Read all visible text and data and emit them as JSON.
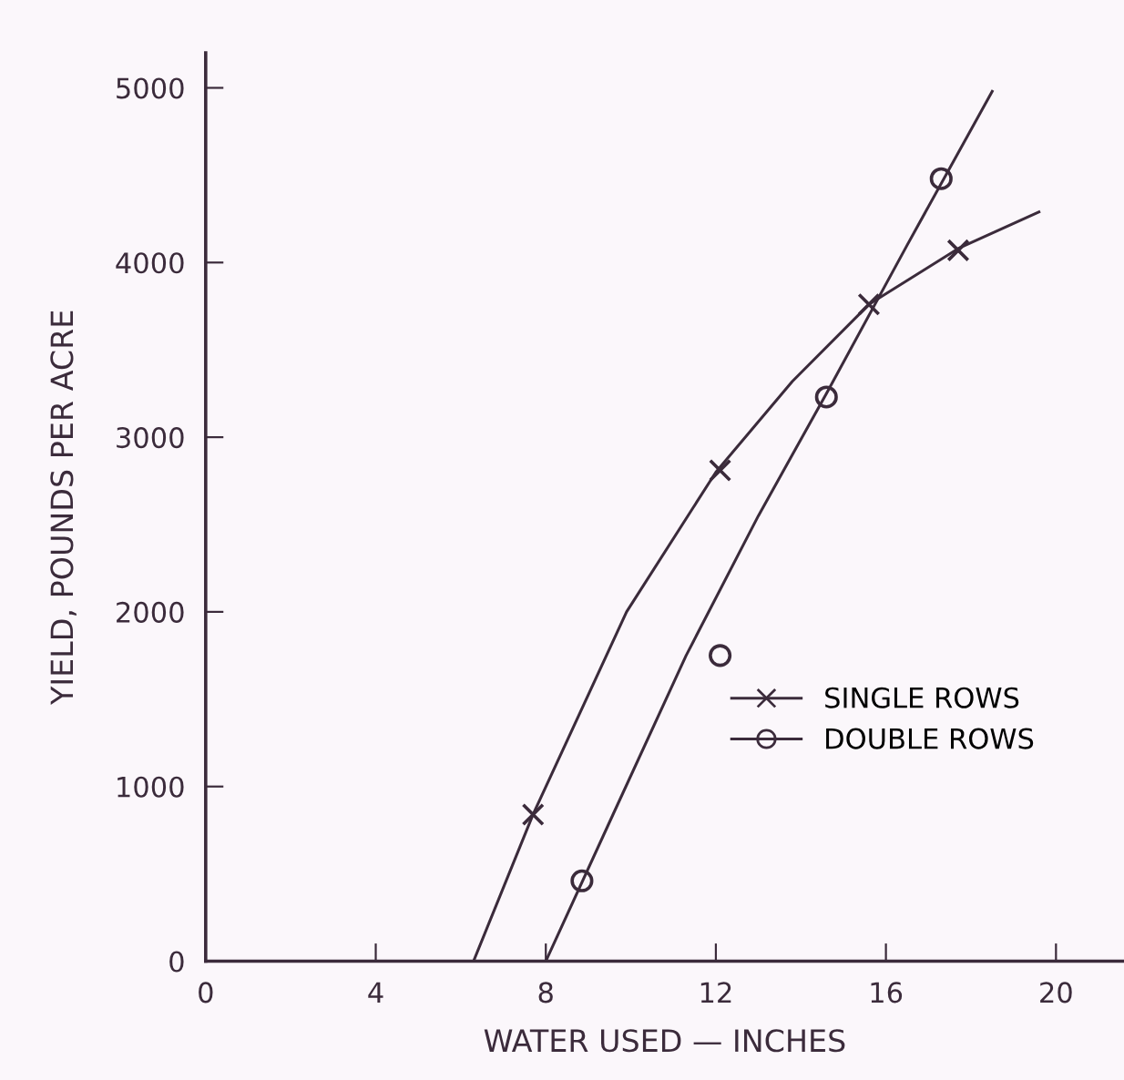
{
  "chart_data": {
    "type": "scatter",
    "xlabel": "WATER USED — INCHES",
    "ylabel": "YIELD, POUNDS PER ACRE",
    "xlim": [
      0,
      21.6
    ],
    "ylim": [
      0,
      5200
    ],
    "xticks": [
      0,
      4,
      8,
      12,
      16,
      20
    ],
    "yticks": [
      0,
      1000,
      2000,
      3000,
      4000,
      5000
    ],
    "grid": false,
    "legend": "bottom right",
    "series": [
      {
        "name": "SINGLE ROWS",
        "marker": "cross",
        "color": "#3b2b3b",
        "x": [
          7.7,
          12.1,
          15.6,
          17.7
        ],
        "values": [
          840,
          2810,
          3760,
          4070
        ]
      },
      {
        "name": "DOUBLE ROWS",
        "marker": "circle",
        "color": "#3b2b3b",
        "x": [
          8.85,
          12.1,
          14.6,
          17.3
        ],
        "values": [
          460,
          1750,
          3230,
          4480
        ]
      },
      {
        "type": "line",
        "marker": "none",
        "color": "#3b2b3b",
        "x": [
          6.3,
          7.7,
          9.9,
          12.0,
          13.8,
          15.6,
          17.7,
          19.6
        ],
        "values": [
          0,
          840,
          2000,
          2800,
          3320,
          3760,
          4080,
          4290
        ]
      },
      {
        "type": "line",
        "marker": "none",
        "color": "#3b2b3b",
        "x": [
          8.0,
          9.6,
          11.3,
          13.0,
          14.6,
          16.5,
          18.5
        ],
        "values": [
          0,
          850,
          1750,
          2550,
          3250,
          4100,
          4980
        ]
      }
    ]
  }
}
